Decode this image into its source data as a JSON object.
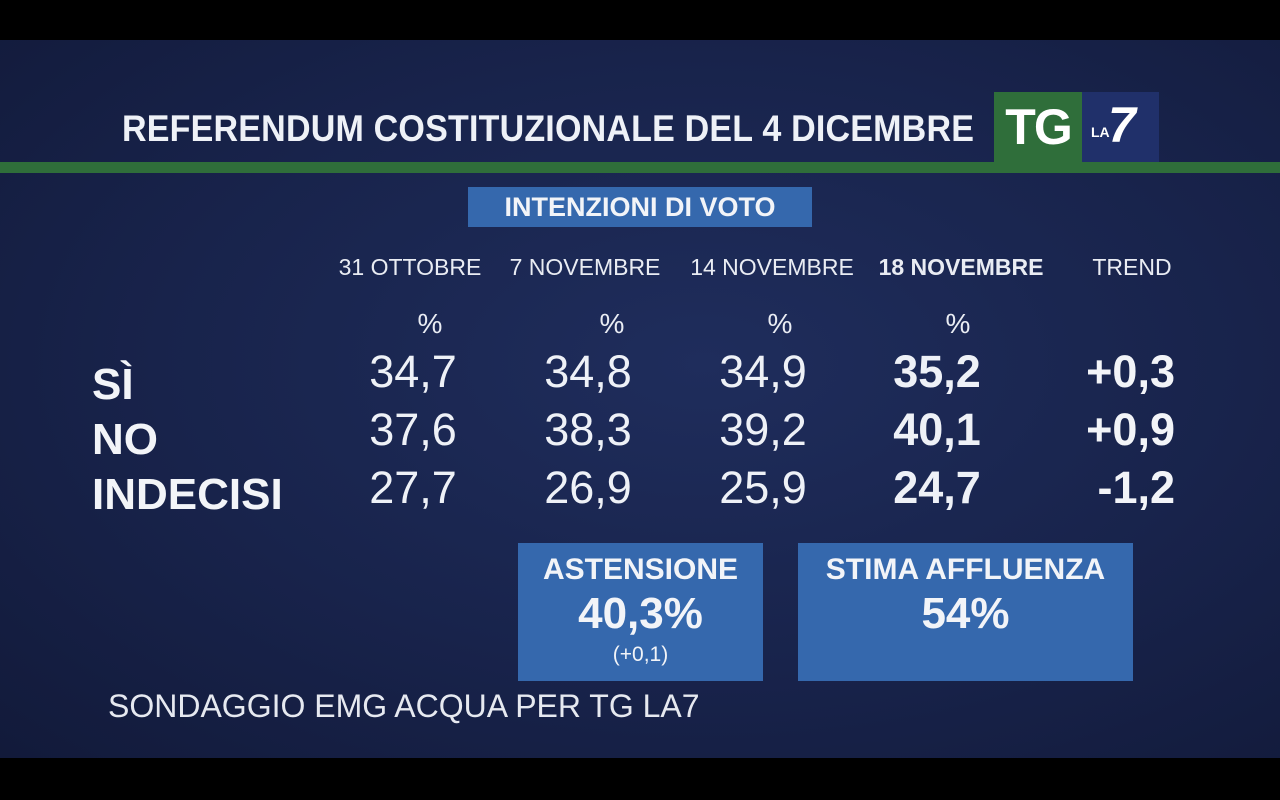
{
  "header": {
    "title": "REFERENDUM COSTITUZIONALE DEL 4 DICEMBRE",
    "logo_tg": "TG",
    "logo_la": "LA",
    "logo_seven": "7"
  },
  "badge": "INTENZIONI DI VOTO",
  "columns": [
    "31 OTTOBRE",
    "7 NOVEMBRE",
    "14 NOVEMBRE",
    "18 NOVEMBRE",
    "TREND"
  ],
  "percent_symbol": "%",
  "rows": [
    {
      "label": "SÌ",
      "values": [
        "34,7",
        "34,8",
        "34,9",
        "35,2"
      ],
      "trend": "+0,3"
    },
    {
      "label": "NO",
      "values": [
        "37,6",
        "38,3",
        "39,2",
        "40,1"
      ],
      "trend": "+0,9"
    },
    {
      "label": "INDECISI",
      "values": [
        "27,7",
        "26,9",
        "25,9",
        "24,7"
      ],
      "trend": "-1,2"
    }
  ],
  "astensione": {
    "label": "ASTENSIONE",
    "value": "40,3%",
    "change": "(+0,1)"
  },
  "affluenza": {
    "label": "STIMA AFFLUENZA",
    "value": "54%"
  },
  "source": "SONDAGGIO EMG ACQUA PER TG LA7",
  "colors": {
    "background": "#18234b",
    "accent_green": "#2f6e3a",
    "accent_blue": "#3568ad"
  }
}
